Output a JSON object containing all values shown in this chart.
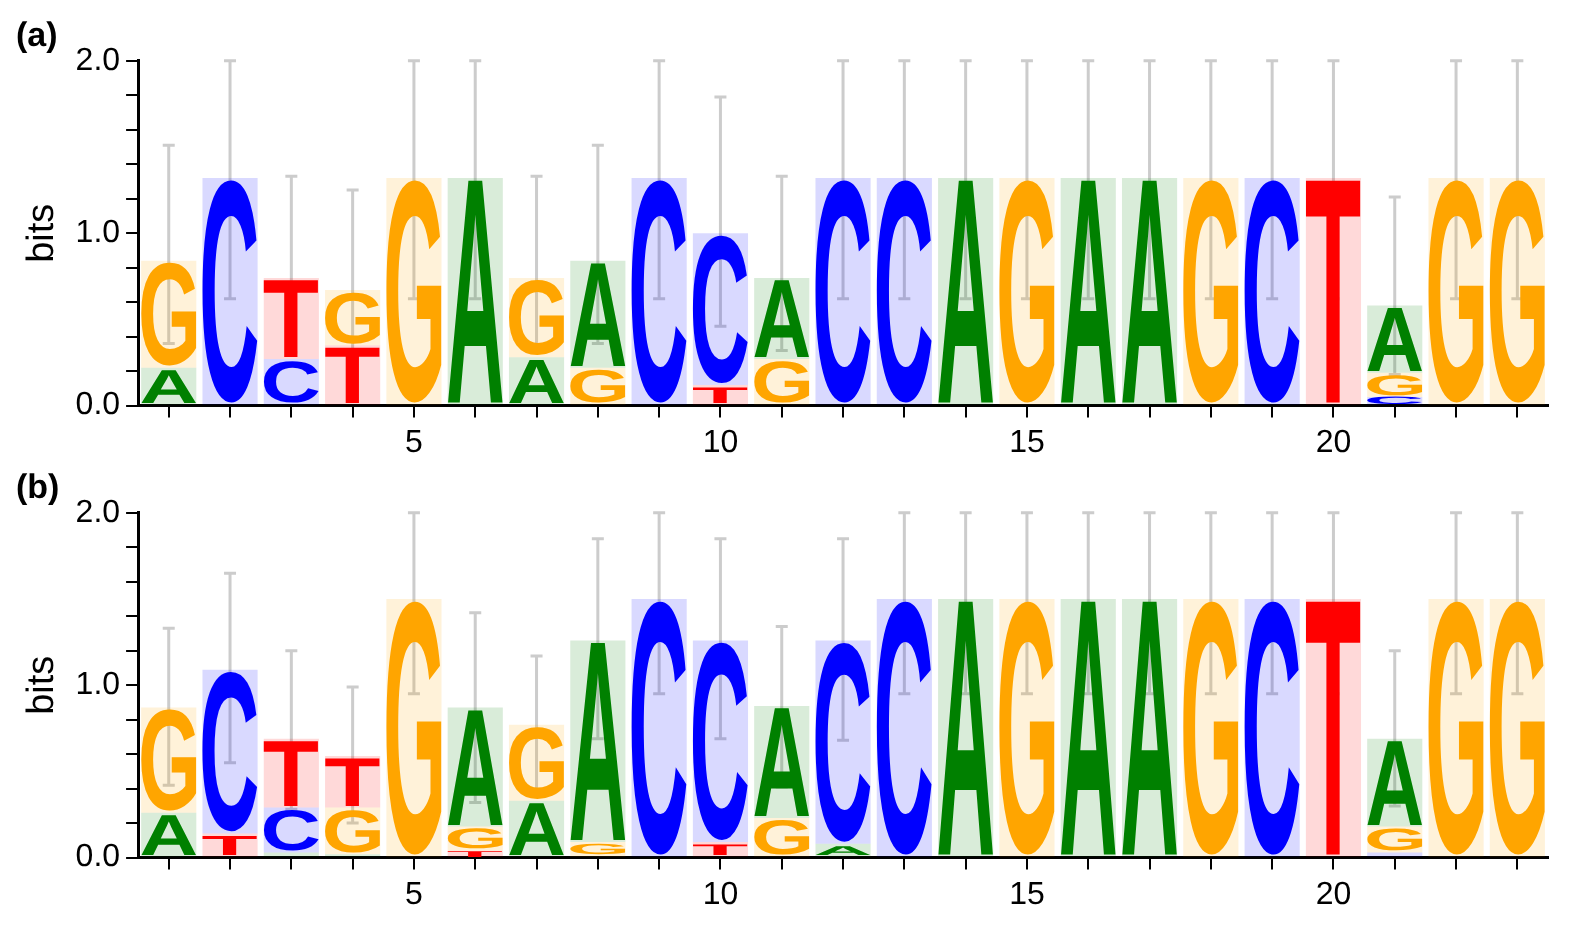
{
  "chart_data": [
    {
      "type": "bar",
      "stacked": true,
      "title": "(a)",
      "ylabel": "bits",
      "x": [
        1,
        2,
        3,
        4,
        5,
        6,
        7,
        8,
        9,
        10,
        11,
        12,
        13,
        14,
        15,
        16,
        17,
        18,
        19,
        20,
        21,
        22,
        23
      ],
      "xlim": [
        0.5,
        23.5
      ],
      "xticks": [
        {
          "value": 1,
          "label": null
        },
        {
          "value": 2,
          "label": null
        },
        {
          "value": 3,
          "label": null
        },
        {
          "value": 4,
          "label": null
        },
        5,
        {
          "value": 6,
          "label": null
        },
        {
          "value": 7,
          "label": null
        },
        {
          "value": 8,
          "label": null
        },
        {
          "value": 9,
          "label": null
        },
        10,
        {
          "value": 11,
          "label": null
        },
        {
          "value": 12,
          "label": null
        },
        {
          "value": 13,
          "label": null
        },
        {
          "value": 14,
          "label": null
        },
        15,
        {
          "value": 16,
          "label": null
        },
        {
          "value": 17,
          "label": null
        },
        {
          "value": 18,
          "label": null
        },
        {
          "value": 19,
          "label": null
        },
        20,
        {
          "value": 21,
          "label": null
        },
        {
          "value": 22,
          "label": null
        },
        {
          "value": 23,
          "label": null
        }
      ],
      "ylim": [
        0,
        2.0
      ],
      "yticks": [
        {
          "value": 0,
          "label": "0.0"
        },
        {
          "value": 0.2,
          "label": null
        },
        {
          "value": 0.4,
          "label": null
        },
        {
          "value": 0.6,
          "label": null
        },
        {
          "value": 0.8,
          "label": null
        },
        {
          "value": 1,
          "label": "1.0"
        },
        {
          "value": 1.2,
          "label": null
        },
        {
          "value": 1.4,
          "label": null
        },
        {
          "value": 1.6,
          "label": null
        },
        {
          "value": 1.8,
          "label": null
        },
        {
          "value": 2,
          "label": "2.0"
        }
      ],
      "series": [
        {
          "values": [
            0.22,
            1.32,
            0.27,
            0.35,
            1.32,
            1.32,
            0.28,
            0.22,
            1.32,
            0.12,
            0.27,
            1.32,
            1.32,
            1.32,
            1.32,
            1.32,
            1.32,
            1.32,
            1.32,
            1.32,
            0.05,
            1.32,
            1.32
          ],
          "value_labels": [
            "A",
            "C",
            "C",
            "T",
            "G",
            "A",
            "A",
            "G",
            "C",
            "T",
            "G",
            "C",
            "C",
            "A",
            "G",
            "A",
            "A",
            "G",
            "C",
            "T",
            "C",
            "G",
            "G"
          ],
          "colors": [
            "#008000",
            "#0000ff",
            "#0000ff",
            "#ff0000",
            "#ffa500",
            "#008000",
            "#008000",
            "#ffa500",
            "#0000ff",
            "#ff0000",
            "#ffa500",
            "#0000ff",
            "#0000ff",
            "#008000",
            "#ffa500",
            "#008000",
            "#008000",
            "#ffa500",
            "#0000ff",
            "#ff0000",
            "#0000ff",
            "#ffa500",
            "#ffa500"
          ],
          "errors": [
            null,
            [
              0.62,
              2.0
            ],
            null,
            null,
            [
              0.62,
              2.0
            ],
            [
              0.62,
              2.0
            ],
            null,
            null,
            [
              0.62,
              2.0
            ],
            null,
            null,
            [
              0.62,
              2.0
            ],
            [
              0.62,
              2.0
            ],
            [
              0.62,
              2.0
            ],
            [
              0.62,
              2.0
            ],
            [
              0.62,
              2.0
            ],
            [
              0.62,
              2.0
            ],
            [
              0.62,
              2.0
            ],
            [
              0.62,
              2.0
            ],
            [
              0.62,
              2.0
            ],
            null,
            [
              0.62,
              2.0
            ],
            [
              0.62,
              2.0
            ]
          ]
        },
        {
          "values": [
            0.62,
            null,
            0.47,
            0.32,
            null,
            null,
            0.46,
            0.62,
            null,
            0.88,
            0.47,
            null,
            null,
            null,
            null,
            null,
            null,
            null,
            null,
            null,
            0.14,
            null,
            null
          ],
          "value_labels": [
            "G",
            null,
            "T",
            "G",
            null,
            null,
            "G",
            "A",
            null,
            "C",
            "A",
            null,
            null,
            null,
            null,
            null,
            null,
            null,
            null,
            null,
            "G",
            null,
            null
          ],
          "colors": [
            "#ffa500",
            null,
            "#ff0000",
            "#ffa500",
            null,
            null,
            "#ffa500",
            "#008000",
            null,
            "#0000ff",
            "#008000",
            null,
            null,
            null,
            null,
            null,
            null,
            null,
            null,
            null,
            "#ffa500",
            null,
            null
          ],
          "errors": [
            [
              0.36,
              1.51
            ],
            null,
            [
              0.31,
              1.33
            ],
            [
              0.32,
              1.25
            ],
            null,
            null,
            [
              0.32,
              1.33
            ],
            [
              0.36,
              1.51
            ],
            null,
            [
              0.46,
              1.79
            ],
            [
              0.32,
              1.33
            ],
            null,
            null,
            null,
            null,
            null,
            null,
            null,
            null,
            null,
            null,
            null,
            null
          ]
        },
        {
          "values": [
            null,
            null,
            null,
            null,
            null,
            null,
            null,
            null,
            null,
            null,
            null,
            null,
            null,
            null,
            null,
            null,
            null,
            null,
            null,
            null,
            0.39,
            null,
            null
          ],
          "value_labels": [
            null,
            null,
            null,
            null,
            null,
            null,
            null,
            null,
            null,
            null,
            null,
            null,
            null,
            null,
            null,
            null,
            null,
            null,
            null,
            null,
            "A",
            null,
            null
          ],
          "colors": [
            null,
            null,
            null,
            null,
            null,
            null,
            null,
            null,
            null,
            null,
            null,
            null,
            null,
            null,
            null,
            null,
            null,
            null,
            null,
            null,
            "#008000",
            null,
            null
          ],
          "errors": [
            null,
            null,
            null,
            null,
            null,
            null,
            null,
            null,
            null,
            null,
            null,
            null,
            null,
            null,
            null,
            null,
            null,
            null,
            null,
            null,
            [
              0.18,
              1.21
            ],
            null,
            null
          ]
        }
      ]
    },
    {
      "type": "bar",
      "stacked": true,
      "title": "(b)",
      "ylabel": "bits",
      "x": [
        1,
        2,
        3,
        4,
        5,
        6,
        7,
        8,
        9,
        10,
        11,
        12,
        13,
        14,
        15,
        16,
        17,
        18,
        19,
        20,
        21,
        22,
        23
      ],
      "xlim": [
        0.5,
        23.5
      ],
      "xticks": [
        {
          "value": 1,
          "label": null
        },
        {
          "value": 2,
          "label": null
        },
        {
          "value": 3,
          "label": null
        },
        {
          "value": 4,
          "label": null
        },
        5,
        {
          "value": 6,
          "label": null
        },
        {
          "value": 7,
          "label": null
        },
        {
          "value": 8,
          "label": null
        },
        {
          "value": 9,
          "label": null
        },
        10,
        {
          "value": 11,
          "label": null
        },
        {
          "value": 12,
          "label": null
        },
        {
          "value": 13,
          "label": null
        },
        {
          "value": 14,
          "label": null
        },
        15,
        {
          "value": 16,
          "label": null
        },
        {
          "value": 17,
          "label": null
        },
        {
          "value": 18,
          "label": null
        },
        {
          "value": 19,
          "label": null
        },
        20,
        {
          "value": 21,
          "label": null
        },
        {
          "value": 22,
          "label": null
        },
        {
          "value": 23,
          "label": null
        }
      ],
      "ylim": [
        0,
        2.0
      ],
      "yticks": [
        {
          "value": 0,
          "label": "0.0"
        },
        {
          "value": 0.2,
          "label": null
        },
        {
          "value": 0.4,
          "label": null
        },
        {
          "value": 0.6,
          "label": null
        },
        {
          "value": 0.8,
          "label": null
        },
        {
          "value": 1,
          "label": "1.0"
        },
        {
          "value": 1.2,
          "label": null
        },
        {
          "value": 1.4,
          "label": null
        },
        {
          "value": 1.6,
          "label": null
        },
        {
          "value": 1.8,
          "label": null
        },
        {
          "value": 2,
          "label": "2.0"
        }
      ],
      "series": [
        {
          "values": [
            0.26,
            0.14,
            0.03,
            0.02,
            1.5,
            0.04,
            0.33,
            0.09,
            1.5,
            0.09,
            0.23,
            0.08,
            1.5,
            1.5,
            1.5,
            1.5,
            1.5,
            1.5,
            1.5,
            1.5,
            0.03,
            1.5,
            1.5
          ],
          "value_labels": [
            "A",
            "T",
            null,
            null,
            "G",
            "T",
            "A",
            "G",
            "C",
            "T",
            "G",
            "A",
            "C",
            "A",
            "G",
            "A",
            "A",
            "G",
            "C",
            "T",
            null,
            "G",
            "G"
          ],
          "colors": [
            "#008000",
            "#ff0000",
            "#008000",
            "#008000",
            "#ffa500",
            "#ff0000",
            "#008000",
            "#ffa500",
            "#0000ff",
            "#ff0000",
            "#ffa500",
            "#008000",
            "#0000ff",
            "#008000",
            "#ffa500",
            "#008000",
            "#008000",
            "#ffa500",
            "#0000ff",
            "#ff0000",
            "#0000ff",
            "#ffa500",
            "#ffa500"
          ],
          "errors": [
            null,
            null,
            null,
            null,
            [
              0.95,
              2.0
            ],
            null,
            null,
            null,
            [
              0.95,
              2.0
            ],
            null,
            null,
            null,
            [
              0.95,
              2.0
            ],
            [
              0.95,
              2.0
            ],
            [
              0.95,
              2.0
            ],
            [
              0.95,
              2.0
            ],
            [
              0.95,
              2.0
            ],
            [
              0.95,
              2.0
            ],
            [
              0.95,
              2.0
            ],
            [
              0.95,
              2.0
            ],
            null,
            [
              0.95,
              2.0
            ],
            [
              0.95,
              2.0
            ]
          ]
        },
        {
          "values": [
            0.61,
            0.95,
            0.26,
            0.27,
            null,
            0.14,
            0.44,
            1.17,
            null,
            1.17,
            0.65,
            1.18,
            null,
            null,
            null,
            null,
            null,
            null,
            null,
            null,
            0.15,
            null,
            null
          ],
          "value_labels": [
            "G",
            "C",
            "C",
            "G",
            null,
            "G",
            "G",
            "A",
            null,
            "C",
            "A",
            "C",
            null,
            null,
            null,
            null,
            null,
            null,
            null,
            null,
            "G",
            null,
            null
          ],
          "colors": [
            "#ffa500",
            "#0000ff",
            "#0000ff",
            "#ffa500",
            null,
            "#ffa500",
            "#ffa500",
            "#008000",
            null,
            "#0000ff",
            "#008000",
            "#0000ff",
            null,
            null,
            null,
            null,
            null,
            null,
            null,
            null,
            "#ffa500",
            null,
            null
          ],
          "errors": [
            [
              0.42,
              1.33
            ],
            [
              0.55,
              1.65
            ],
            null,
            null,
            null,
            null,
            [
              0.37,
              1.17
            ],
            [
              0.69,
              1.85
            ],
            null,
            [
              0.69,
              1.85
            ],
            [
              0.41,
              1.34
            ],
            [
              0.68,
              1.85
            ],
            null,
            null,
            null,
            null,
            null,
            null,
            null,
            null,
            null,
            null,
            null
          ]
        },
        {
          "values": [
            null,
            null,
            0.4,
            0.3,
            null,
            0.69,
            null,
            null,
            null,
            null,
            null,
            null,
            null,
            null,
            null,
            null,
            null,
            null,
            null,
            null,
            0.51,
            null,
            null
          ],
          "value_labels": [
            null,
            null,
            "T",
            "T",
            null,
            "A",
            null,
            null,
            null,
            null,
            null,
            null,
            null,
            null,
            null,
            null,
            null,
            null,
            null,
            null,
            "A",
            null,
            null
          ],
          "colors": [
            null,
            null,
            "#ff0000",
            "#ff0000",
            null,
            "#008000",
            null,
            null,
            null,
            null,
            null,
            null,
            null,
            null,
            null,
            null,
            null,
            null,
            null,
            null,
            "#008000",
            null,
            null
          ],
          "errors": [
            null,
            null,
            [
              0.28,
              1.2
            ],
            [
              0.2,
              0.99
            ],
            null,
            [
              0.32,
              1.42
            ],
            null,
            null,
            null,
            null,
            null,
            null,
            null,
            null,
            null,
            null,
            null,
            null,
            null,
            null,
            [
              0.3,
              1.2
            ],
            null,
            null
          ]
        }
      ]
    }
  ]
}
